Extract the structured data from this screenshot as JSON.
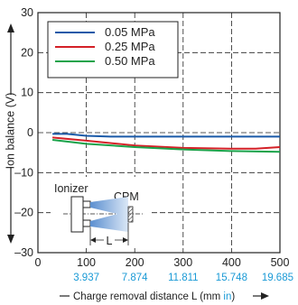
{
  "chart_data": {
    "type": "line",
    "title": "",
    "xlabel_prefix": "Charge removal distance L (mm ",
    "xlabel_in": "in",
    "xlabel_suffix": ")",
    "ylabel": "Ion balance (V)",
    "xlim": [
      0,
      500
    ],
    "ylim": [
      -30,
      30
    ],
    "x_ticks": [
      0,
      100,
      200,
      300,
      400,
      500
    ],
    "x_ticks_in": [
      {
        "x": 100,
        "label": "3.937"
      },
      {
        "x": 200,
        "label": "7.874"
      },
      {
        "x": 300,
        "label": "11.811"
      },
      {
        "x": 400,
        "label": "15.748"
      },
      {
        "x": 500,
        "label": "19.685"
      }
    ],
    "y_ticks": [
      30,
      20,
      10,
      0,
      -10,
      -20,
      -30
    ],
    "y_tick_labels": [
      "30",
      "20",
      "10",
      "0",
      "–10",
      "–20",
      "–30"
    ],
    "grid": true,
    "legend_position": "top-left",
    "series": [
      {
        "name": "0.05 MPa",
        "color": "#1a5aa8",
        "x": [
          30,
          60,
          100,
          150,
          200,
          300,
          400,
          500
        ],
        "y": [
          -0.3,
          -0.3,
          -0.8,
          -1.0,
          -1.0,
          -1.0,
          -1.0,
          -1.0
        ]
      },
      {
        "name": "0.25 MPa",
        "color": "#d42027",
        "x": [
          30,
          100,
          200,
          300,
          400,
          450,
          500
        ],
        "y": [
          -1.2,
          -2.0,
          -3.2,
          -3.8,
          -4.0,
          -4.0,
          -3.6
        ]
      },
      {
        "name": "0.50 MPa",
        "color": "#1aa34a",
        "x": [
          30,
          100,
          200,
          300,
          400,
          500
        ],
        "y": [
          -1.8,
          -2.8,
          -3.6,
          -4.2,
          -4.6,
          -4.8
        ]
      }
    ]
  },
  "inset": {
    "ionizer_label": "Ionizer",
    "cpm_label": "CPM",
    "distance_label": "L"
  }
}
